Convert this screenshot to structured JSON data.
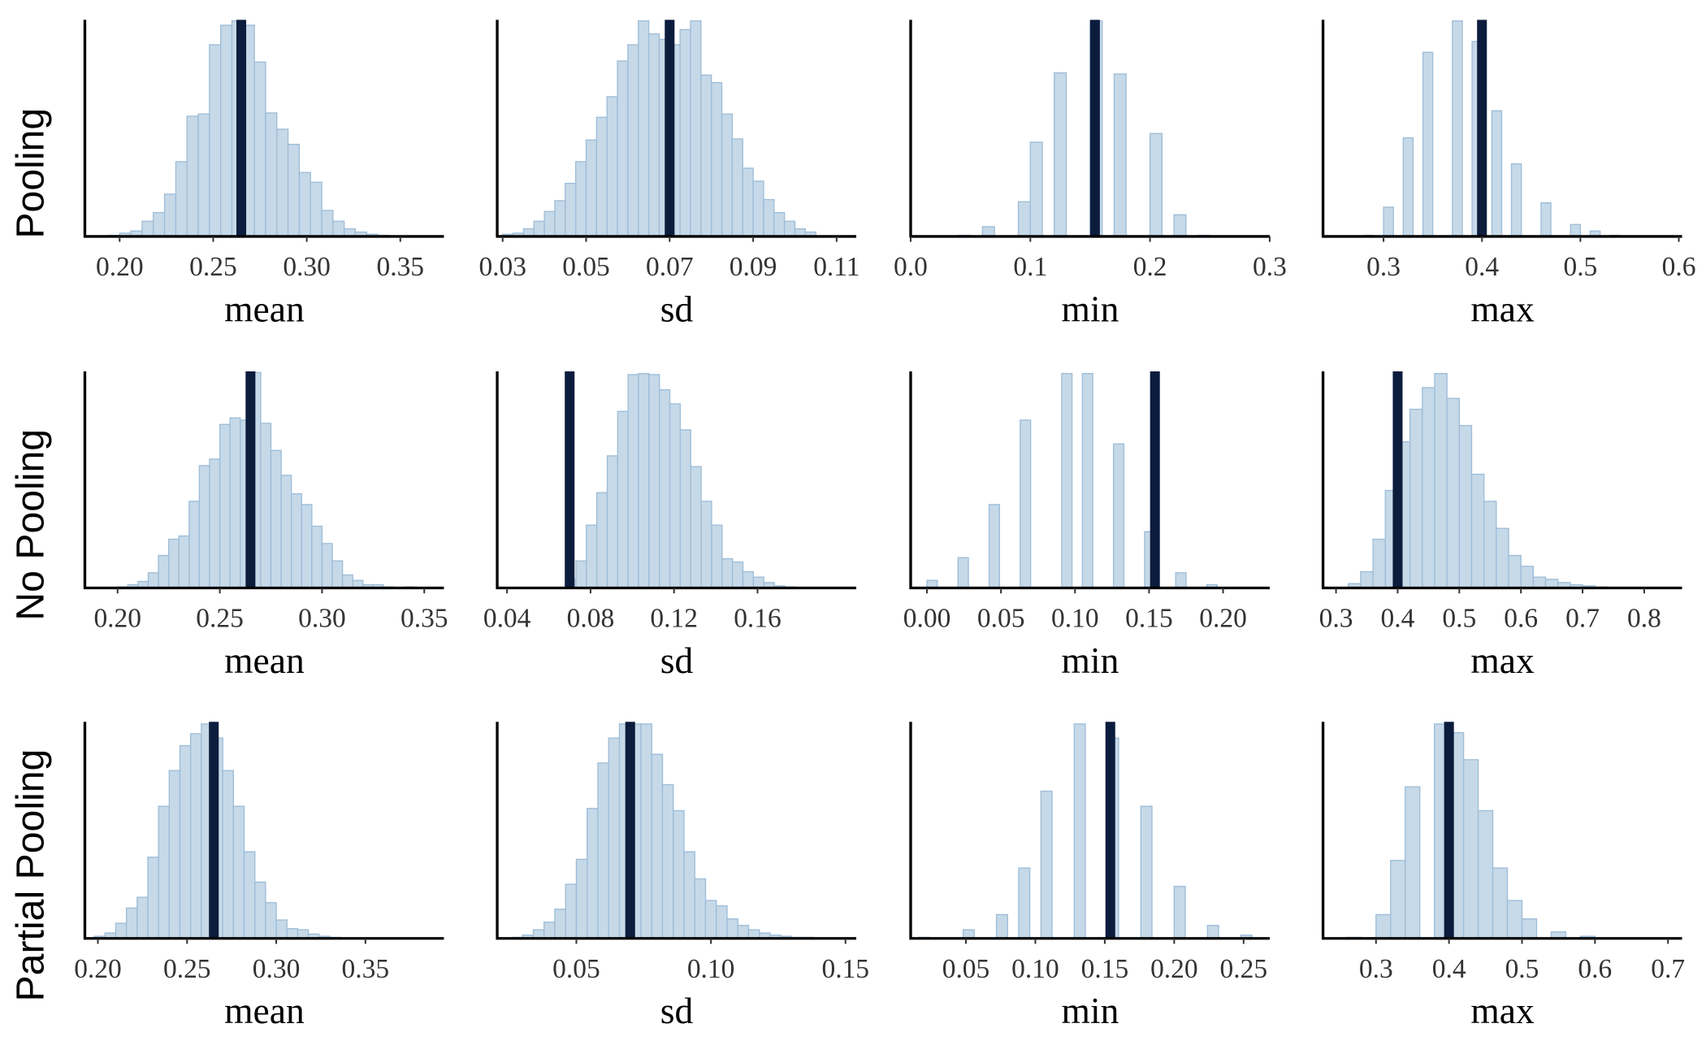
{
  "row_labels": [
    "Pooling",
    "No Pooling",
    "Partial Pooling"
  ],
  "chart_data": [
    {
      "type": "histogram",
      "xlabel": "mean",
      "color": "#c6d9e8",
      "edge_color": "#9dbdd8",
      "observed_color": "#0c1c3d",
      "xlim": [
        0.1814,
        0.3733
      ],
      "ylim": [
        0,
        200
      ],
      "xticks": [
        {
          "value": 0.2,
          "label": "0.20"
        },
        {
          "value": 0.25,
          "label": "0.25"
        },
        {
          "value": 0.3,
          "label": "0.30"
        },
        {
          "value": 0.35,
          "label": "0.35"
        }
      ],
      "bins": [
        0.194,
        0.2,
        0.206,
        0.212,
        0.218,
        0.224,
        0.23,
        0.236,
        0.242,
        0.248,
        0.254,
        0.26,
        0.266,
        0.272,
        0.278,
        0.284,
        0.29,
        0.296,
        0.302,
        0.308,
        0.314,
        0.32,
        0.326,
        0.332,
        0.338,
        0.344
      ],
      "counts": [
        1,
        3,
        5,
        14,
        22,
        39,
        69,
        111,
        113,
        177,
        195,
        199,
        195,
        161,
        114,
        99,
        85,
        59,
        50,
        24,
        14,
        7,
        4,
        2,
        1
      ],
      "observed": 0.265
    },
    {
      "type": "histogram",
      "xlabel": "sd",
      "color": "#c6d9e8",
      "edge_color": "#9dbdd8",
      "observed_color": "#0c1c3d",
      "xlim": [
        0.0287,
        0.1147
      ],
      "ylim": [
        0,
        200
      ],
      "xticks": [
        0.03,
        0.05,
        0.07,
        0.09,
        0.11
      ],
      "bins": [
        0.03,
        0.0325,
        0.035,
        0.0375,
        0.04,
        0.0425,
        0.045,
        0.0475,
        0.05,
        0.0525,
        0.055,
        0.0575,
        0.06,
        0.0625,
        0.065,
        0.0675,
        0.07,
        0.0725,
        0.075,
        0.0775,
        0.08,
        0.0825,
        0.085,
        0.0875,
        0.09,
        0.0925,
        0.095,
        0.0975,
        0.1,
        0.1025,
        0.105
      ],
      "counts": [
        2,
        3,
        7,
        14,
        23,
        33,
        49,
        69,
        89,
        110,
        129,
        162,
        177,
        199,
        187,
        182,
        177,
        191,
        199,
        149,
        142,
        113,
        90,
        63,
        51,
        34,
        22,
        14,
        7,
        4
      ],
      "observed": 0.07
    },
    {
      "type": "histogram",
      "xlabel": "min",
      "color": "#c6d9e8",
      "edge_color": "#9dbdd8",
      "observed_color": "#0c1c3d",
      "xlim": [
        0,
        0.3
      ],
      "ylim": [
        0,
        200
      ],
      "xticks": [
        {
          "value": 0,
          "label": "0.0"
        },
        0.1,
        0.2,
        0.3
      ],
      "bins": [
        0.04,
        0.05,
        0.06,
        0.07,
        0.08,
        0.09,
        0.1,
        0.11,
        0.12,
        0.13,
        0.14,
        0.15,
        0.16,
        0.17,
        0.18,
        0.19,
        0.2,
        0.21,
        0.22,
        0.23,
        0.24,
        0.25
      ],
      "counts": [
        1,
        0,
        9,
        0,
        0,
        32,
        87,
        0,
        151,
        0,
        0,
        199,
        0,
        150,
        0,
        0,
        95,
        0,
        20,
        0,
        1
      ],
      "observed": 0.154
    },
    {
      "type": "histogram",
      "xlabel": "max",
      "color": "#c6d9e8",
      "edge_color": "#9dbdd8",
      "observed_color": "#0c1c3d",
      "xlim": [
        0.2385,
        0.6033
      ],
      "ylim": [
        0,
        200
      ],
      "xticks": [
        0.3,
        0.4,
        0.5,
        0.6
      ],
      "bins": [
        0.27,
        0.28,
        0.29,
        0.3,
        0.31,
        0.32,
        0.33,
        0.34,
        0.35,
        0.36,
        0.37,
        0.38,
        0.39,
        0.4,
        0.41,
        0.42,
        0.43,
        0.44,
        0.45,
        0.46,
        0.47,
        0.48,
        0.49,
        0.5,
        0.51,
        0.52,
        0.53,
        0.54
      ],
      "counts": [
        0,
        1,
        0,
        27,
        0,
        91,
        0,
        170,
        0,
        0,
        199,
        0,
        180,
        0,
        116,
        0,
        67,
        0,
        0,
        31,
        0,
        0,
        11,
        0,
        5,
        0,
        1
      ],
      "observed": 0.4
    },
    {
      "type": "histogram",
      "xlabel": "mean",
      "color": "#c6d9e8",
      "edge_color": "#9dbdd8",
      "observed_color": "#0c1c3d",
      "xlim": [
        0.184,
        0.3596
      ],
      "ylim": [
        0,
        200
      ],
      "xticks": [
        {
          "value": 0.2,
          "label": "0.20"
        },
        {
          "value": 0.25,
          "label": "0.25"
        },
        {
          "value": 0.3,
          "label": "0.30"
        },
        {
          "value": 0.35,
          "label": "0.35"
        }
      ],
      "bins": [
        0.2,
        0.205,
        0.21,
        0.215,
        0.22,
        0.225,
        0.23,
        0.235,
        0.24,
        0.245,
        0.25,
        0.255,
        0.26,
        0.265,
        0.27,
        0.275,
        0.28,
        0.285,
        0.29,
        0.295,
        0.3,
        0.305,
        0.31,
        0.315,
        0.32,
        0.325,
        0.33,
        0.335,
        0.34,
        0.345
      ],
      "counts": [
        1,
        3,
        6,
        14,
        30,
        45,
        48,
        80,
        113,
        119,
        151,
        157,
        155,
        199,
        152,
        127,
        104,
        87,
        77,
        57,
        41,
        25,
        12,
        7,
        3,
        3,
        1,
        0,
        1
      ],
      "observed": 0.265
    },
    {
      "type": "histogram",
      "xlabel": "sd",
      "color": "#c6d9e8",
      "edge_color": "#9dbdd8",
      "observed_color": "#0c1c3d",
      "xlim": [
        0.0353,
        0.2073
      ],
      "ylim": [
        0,
        200
      ],
      "xticks": [
        0.04,
        0.08,
        0.12,
        0.16
      ],
      "bins": [
        0.068,
        0.073,
        0.078,
        0.083,
        0.088,
        0.093,
        0.098,
        0.103,
        0.108,
        0.113,
        0.118,
        0.123,
        0.128,
        0.133,
        0.138,
        0.143,
        0.148,
        0.153,
        0.158,
        0.163,
        0.168,
        0.173,
        0.178
      ],
      "counts": [
        8,
        25,
        58,
        88,
        122,
        163,
        197,
        198,
        197,
        183,
        170,
        146,
        112,
        80,
        58,
        27,
        24,
        15,
        10,
        5,
        2,
        1
      ],
      "observed": 0.07
    },
    {
      "type": "histogram",
      "xlabel": "min",
      "color": "#c6d9e8",
      "edge_color": "#9dbdd8",
      "observed_color": "#0c1c3d",
      "xlim": [
        -0.011,
        0.2315
      ],
      "ylim": [
        0,
        200
      ],
      "xticks": [
        {
          "value": 0,
          "label": "0.00"
        },
        0.05,
        {
          "value": 0.1,
          "label": "0.10"
        },
        0.15,
        {
          "value": 0.2,
          "label": "0.20"
        }
      ],
      "bins": [
        0,
        0.007,
        0.014,
        0.021,
        0.028,
        0.035,
        0.042,
        0.049,
        0.056,
        0.063,
        0.07,
        0.077,
        0.084,
        0.091,
        0.098,
        0.105,
        0.112,
        0.119,
        0.126,
        0.133,
        0.14,
        0.147,
        0.154,
        0.161,
        0.168,
        0.175,
        0.182,
        0.189,
        0.196,
        0.203
      ],
      "counts": [
        7,
        0,
        0,
        28,
        0,
        0,
        77,
        0,
        0,
        155,
        0,
        0,
        0,
        198,
        0,
        198,
        0,
        0,
        133,
        0,
        0,
        52,
        0,
        0,
        14,
        0,
        0,
        3,
        0
      ],
      "observed": 0.154
    },
    {
      "type": "histogram",
      "xlabel": "max",
      "color": "#c6d9e8",
      "edge_color": "#9dbdd8",
      "observed_color": "#0c1c3d",
      "xlim": [
        0.2789,
        0.8614
      ],
      "ylim": [
        0,
        200
      ],
      "xticks": [
        0.3,
        0.4,
        0.5,
        0.6,
        0.7,
        0.8
      ],
      "bins": [
        0.32,
        0.34,
        0.36,
        0.38,
        0.4,
        0.42,
        0.44,
        0.46,
        0.48,
        0.5,
        0.52,
        0.54,
        0.56,
        0.58,
        0.6,
        0.62,
        0.64,
        0.66,
        0.68,
        0.7,
        0.72,
        0.74
      ],
      "counts": [
        4,
        15,
        45,
        90,
        135,
        165,
        185,
        198,
        175,
        150,
        105,
        80,
        55,
        30,
        20,
        10,
        8,
        5,
        3,
        2,
        1
      ],
      "observed": 0.4
    },
    {
      "type": "histogram",
      "xlabel": "mean",
      "color": "#c6d9e8",
      "edge_color": "#9dbdd8",
      "observed_color": "#0c1c3d",
      "xlim": [
        0.1927,
        0.394
      ],
      "ylim": [
        0,
        200
      ],
      "xticks": [
        {
          "value": 0.2,
          "label": "0.20"
        },
        {
          "value": 0.25,
          "label": "0.25"
        },
        {
          "value": 0.3,
          "label": "0.30"
        },
        {
          "value": 0.35,
          "label": "0.35"
        }
      ],
      "bins": [
        0.198,
        0.204,
        0.21,
        0.216,
        0.222,
        0.228,
        0.234,
        0.24,
        0.246,
        0.252,
        0.258,
        0.264,
        0.27,
        0.276,
        0.282,
        0.288,
        0.294,
        0.3,
        0.306,
        0.312,
        0.318,
        0.324,
        0.33,
        0.336
      ],
      "counts": [
        2,
        5,
        14,
        28,
        38,
        75,
        122,
        155,
        178,
        189,
        198,
        185,
        155,
        122,
        80,
        52,
        33,
        17,
        9,
        8,
        4,
        2,
        1
      ],
      "observed": 0.265
    },
    {
      "type": "histogram",
      "xlabel": "sd",
      "color": "#c6d9e8",
      "edge_color": "#9dbdd8",
      "observed_color": "#0c1c3d",
      "xlim": [
        0.0206,
        0.154
      ],
      "ylim": [
        0,
        200
      ],
      "xticks": [
        0.05,
        {
          "value": 0.1,
          "label": "0.10"
        },
        0.15
      ],
      "bins": [
        0.026,
        0.03,
        0.034,
        0.038,
        0.042,
        0.046,
        0.05,
        0.054,
        0.058,
        0.062,
        0.066,
        0.07,
        0.074,
        0.078,
        0.082,
        0.086,
        0.09,
        0.094,
        0.098,
        0.102,
        0.106,
        0.11,
        0.114,
        0.118,
        0.122,
        0.126,
        0.13,
        0.134,
        0.138
      ],
      "counts": [
        1,
        3,
        8,
        15,
        27,
        50,
        73,
        120,
        162,
        185,
        198,
        198,
        198,
        170,
        142,
        118,
        80,
        55,
        35,
        30,
        18,
        12,
        8,
        5,
        3,
        2,
        1,
        1
      ],
      "observed": 0.07
    },
    {
      "type": "histogram",
      "xlabel": "min",
      "color": "#c6d9e8",
      "edge_color": "#9dbdd8",
      "observed_color": "#0c1c3d",
      "xlim": [
        0.0102,
        0.2688
      ],
      "ylim": [
        0,
        200
      ],
      "xticks": [
        0.05,
        {
          "value": 0.1,
          "label": "0.10"
        },
        0.15,
        {
          "value": 0.2,
          "label": "0.20"
        },
        0.25
      ],
      "bins": [
        0.016,
        0.024,
        0.032,
        0.04,
        0.048,
        0.056,
        0.064,
        0.072,
        0.08,
        0.088,
        0.096,
        0.104,
        0.112,
        0.12,
        0.128,
        0.136,
        0.144,
        0.152,
        0.16,
        0.168,
        0.176,
        0.184,
        0.192,
        0.2,
        0.208,
        0.216,
        0.224,
        0.232,
        0.24,
        0.248,
        0.256,
        0.264
      ],
      "counts": [
        1,
        0,
        0,
        0,
        8,
        0,
        0,
        22,
        0,
        65,
        0,
        136,
        0,
        0,
        198,
        0,
        0,
        185,
        0,
        0,
        122,
        0,
        0,
        48,
        0,
        0,
        12,
        0,
        0,
        3,
        0
      ],
      "observed": 0.154
    },
    {
      "type": "histogram",
      "xlabel": "max",
      "color": "#c6d9e8",
      "edge_color": "#9dbdd8",
      "observed_color": "#0c1c3d",
      "xlim": [
        0.2274,
        0.7193
      ],
      "ylim": [
        0,
        200
      ],
      "xticks": [
        0.3,
        0.4,
        0.5,
        0.6,
        0.7
      ],
      "bins": [
        0.26,
        0.28,
        0.3,
        0.32,
        0.34,
        0.36,
        0.38,
        0.4,
        0.42,
        0.44,
        0.46,
        0.48,
        0.5,
        0.52,
        0.54,
        0.56,
        0.58,
        0.6
      ],
      "counts": [
        1,
        0,
        22,
        72,
        140,
        0,
        198,
        190,
        165,
        118,
        65,
        35,
        18,
        0,
        6,
        0,
        2
      ],
      "observed": 0.4
    }
  ]
}
